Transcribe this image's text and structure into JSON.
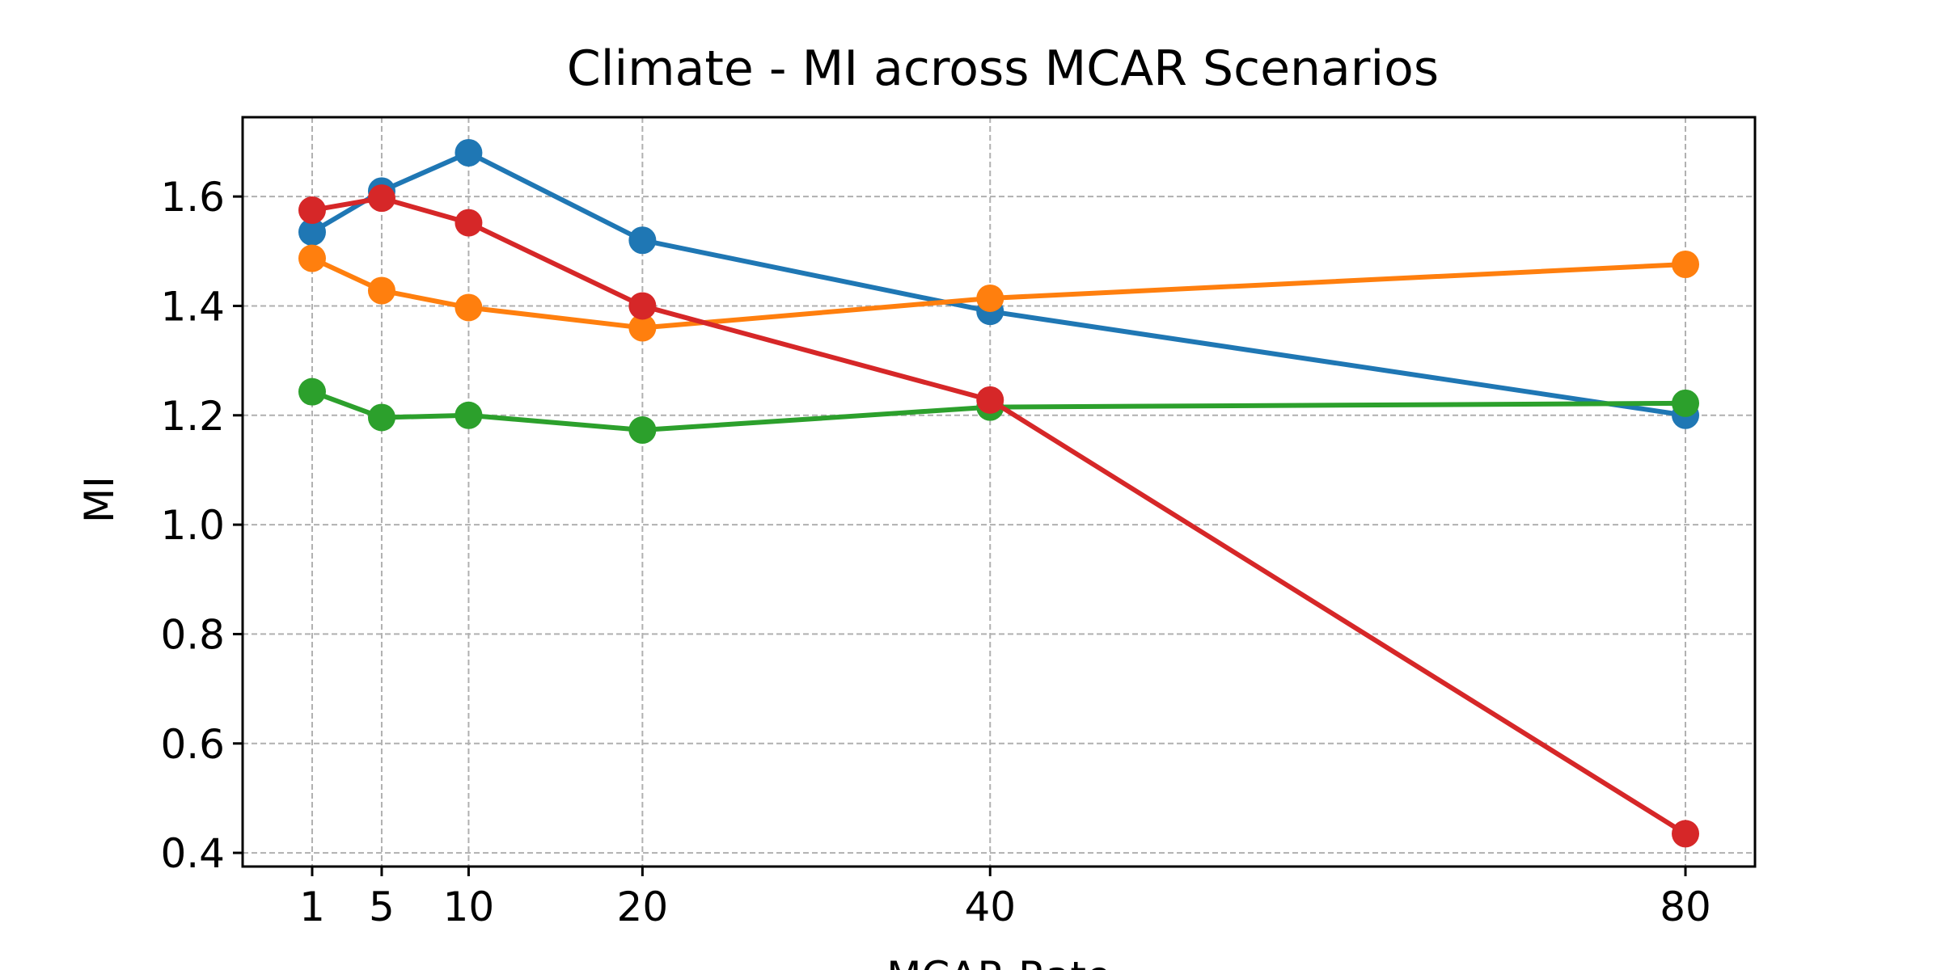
{
  "chart_data": {
    "type": "line",
    "title": "Climate - MI across MCAR Scenarios",
    "xlabel": "MCAR Rate",
    "ylabel": "MI",
    "x": [
      1,
      5,
      10,
      20,
      40,
      80
    ],
    "xticks": [
      "1",
      "5",
      "10",
      "20",
      "40",
      "80"
    ],
    "xlim": [
      -3,
      84
    ],
    "yticks": [
      "0.4",
      "0.6",
      "0.8",
      "1.0",
      "1.2",
      "1.4",
      "1.6"
    ],
    "ylim": [
      0.375,
      1.745
    ],
    "grid": true,
    "series": [
      {
        "color": "#1f77b4",
        "values": [
          1.535,
          1.61,
          1.68,
          1.52,
          1.39,
          1.2
        ]
      },
      {
        "color": "#ff7f0e",
        "values": [
          1.487,
          1.428,
          1.397,
          1.36,
          1.414,
          1.476
        ]
      },
      {
        "color": "#2ca02c",
        "values": [
          1.243,
          1.196,
          1.2,
          1.173,
          1.215,
          1.222
        ]
      },
      {
        "color": "#d62728",
        "values": [
          1.575,
          1.597,
          1.552,
          1.4,
          1.228,
          0.435
        ]
      }
    ]
  }
}
